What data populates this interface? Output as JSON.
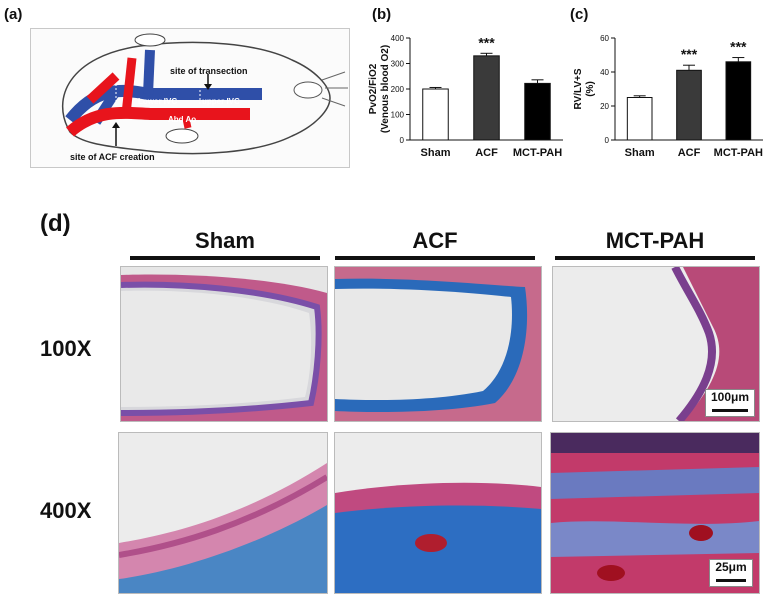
{
  "panels": {
    "a": "(a)",
    "b": "(b)",
    "c": "(c)",
    "d": "(d)"
  },
  "diagram": {
    "transection_label": "site of transection",
    "lower_ivc": "Lower IVC",
    "upper_ivc": "upper IVC",
    "abd_ao": "Abd Ao",
    "acf_label": "site of ACF creation",
    "colors": {
      "vein": "#2f4fa8",
      "artery": "#e8141c"
    }
  },
  "chart_data": [
    {
      "type": "bar",
      "panel": "b",
      "categories": [
        "Sham",
        "ACF",
        "MCT-PAH"
      ],
      "values": [
        200,
        330,
        222
      ],
      "errors": [
        6,
        10,
        14
      ],
      "significance": [
        "",
        "***",
        ""
      ],
      "ylabel_line1": "PvO2/FiO2",
      "ylabel_line2": "(Venous blood O2)",
      "ylim": [
        0,
        400
      ],
      "yticks": [
        0,
        100,
        200,
        300,
        400
      ],
      "bar_colors": [
        "#ffffff",
        "#3a3a3a",
        "#000000"
      ]
    },
    {
      "type": "bar",
      "panel": "c",
      "categories": [
        "Sham",
        "ACF",
        "MCT-PAH"
      ],
      "values": [
        25,
        41,
        46
      ],
      "errors": [
        1,
        3,
        2.5
      ],
      "significance": [
        "",
        "***",
        "***"
      ],
      "ylabel_line1": "RV/LV+S",
      "ylabel_line2": "(%)",
      "ylim": [
        0,
        60
      ],
      "yticks": [
        0,
        20,
        40,
        60
      ],
      "bar_colors": [
        "#ffffff",
        "#3a3a3a",
        "#000000"
      ]
    }
  ],
  "histology": {
    "columns": [
      "Sham",
      "ACF",
      "MCT-PAH"
    ],
    "rows": [
      "100X",
      "400X"
    ],
    "scale_100x": "100μm",
    "scale_400x": "25μm"
  }
}
